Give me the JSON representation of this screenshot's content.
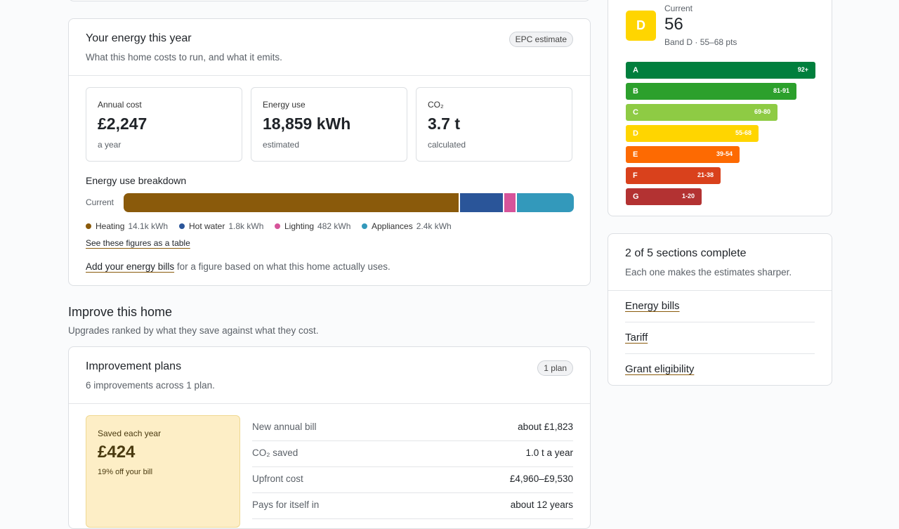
{
  "energy_card": {
    "title": "Your energy this year",
    "subtitle": "What this home costs to run, and what it emits.",
    "badge": "EPC estimate",
    "stats": [
      {
        "label": "Annual cost",
        "value": "£2,247",
        "note": "a year"
      },
      {
        "label": "Energy use",
        "value": "18,859 kWh",
        "note": "estimated"
      },
      {
        "label": "CO₂",
        "value": "3.7 t",
        "note": "calculated"
      }
    ],
    "breakdown": {
      "title": "Energy use breakdown",
      "row_label": "Current",
      "items": [
        {
          "name": "Heating",
          "value": 14100,
          "label": "14.1k kWh",
          "color": "#8a5a0b"
        },
        {
          "name": "Hot water",
          "value": 1800,
          "label": "1.8k kWh",
          "color": "#2a5599"
        },
        {
          "name": "Lighting",
          "value": 482,
          "label": "482 kWh",
          "color": "#d6549a"
        },
        {
          "name": "Appliances",
          "value": 2400,
          "label": "2.4k kWh",
          "color": "#3399bb"
        }
      ],
      "table_link": "See these figures as a table"
    },
    "bills_link": "Add your energy bills",
    "bills_text": " for a figure based on what this home actually uses."
  },
  "improve": {
    "title": "Improve this home",
    "subtitle": "Upgrades ranked by what they save against what they cost."
  },
  "plans_card": {
    "title": "Improvement plans",
    "subtitle": "6 improvements across 1 plan.",
    "badge": "1 plan",
    "saving": {
      "label": "Saved each year",
      "value": "£424",
      "note": "19% off your bill"
    },
    "rows": [
      {
        "label": "New annual bill",
        "value": "about £1,823"
      },
      {
        "label": "CO₂ saved",
        "value": "1.0 t a year"
      },
      {
        "label": "Upfront cost",
        "value": "£4,960–£9,530"
      },
      {
        "label": "Pays for itself in",
        "value": "about 12 years"
      }
    ]
  },
  "epc": {
    "letter": "D",
    "current_label": "Current",
    "score": 56,
    "band_text": "Band D · 55–68 pts",
    "bands": [
      {
        "letter": "A",
        "range": "92+",
        "color": "#007f3d"
      },
      {
        "letter": "B",
        "range": "81-91",
        "color": "#2ca02c"
      },
      {
        "letter": "C",
        "range": "69-80",
        "color": "#8ecb44"
      },
      {
        "letter": "D",
        "range": "55-68",
        "color": "#ffd500"
      },
      {
        "letter": "E",
        "range": "39-54",
        "color": "#fd6a02"
      },
      {
        "letter": "F",
        "range": "21-38",
        "color": "#d9411c"
      },
      {
        "letter": "G",
        "range": "1-20",
        "color": "#b33232"
      }
    ]
  },
  "sections": {
    "title": "2 of 5 sections complete",
    "subtitle": "Each one makes the estimates sharper.",
    "links": [
      "Energy bills",
      "Tariff",
      "Grant eligibility"
    ]
  }
}
